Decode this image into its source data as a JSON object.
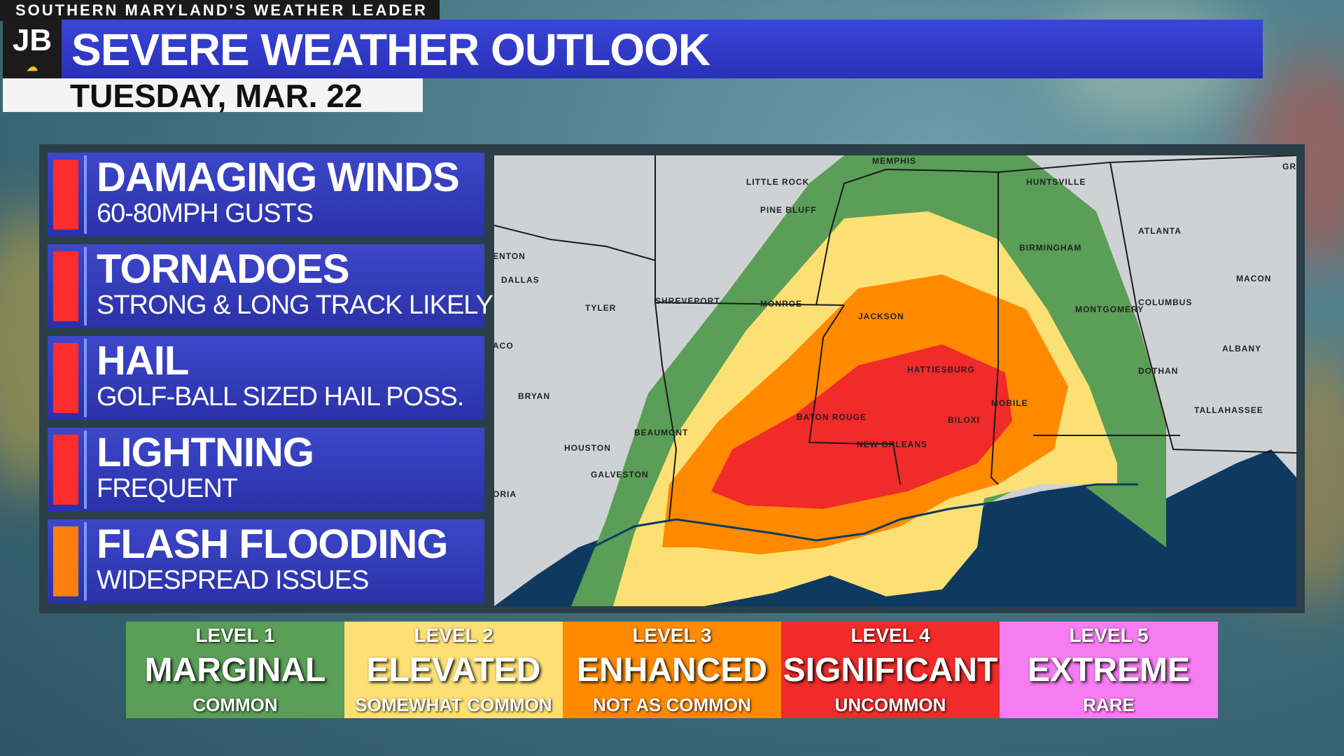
{
  "header": {
    "tagline": "SOUTHERN MARYLAND'S WEATHER LEADER",
    "logo": "JB",
    "title": "SEVERE WEATHER OUTLOOK",
    "date": "TUESDAY, MAR. 22"
  },
  "hazards": [
    {
      "title": "DAMAGING WINDS",
      "sub": "60-80MPH GUSTS",
      "color": "#ff2d2d"
    },
    {
      "title": "TORNADOES",
      "sub": "STRONG & LONG TRACK LIKELY",
      "color": "#ff2d2d"
    },
    {
      "title": "HAIL",
      "sub": "GOLF-BALL SIZED HAIL POSS.",
      "color": "#ff2d2d"
    },
    {
      "title": "LIGHTNING",
      "sub": "FREQUENT",
      "color": "#ff2d2d"
    },
    {
      "title": "FLASH FLOODING",
      "sub": "WIDESPREAD ISSUES",
      "color": "#ff7f0e"
    }
  ],
  "map": {
    "cities": [
      "MEMPHIS",
      "LITTLE ROCK",
      "PINE BLUFF",
      "HUNTSVILLE",
      "GR",
      "ENTON",
      "DALLAS",
      "BIRMINGHAM",
      "ATLANTA",
      "MACON",
      "TYLER",
      "SHREVEPORT",
      "MONROE",
      "JACKSON",
      "MONTGOMERY",
      "COLUMBUS",
      "ACO",
      "ALBANY",
      "HATTIESBURG",
      "DOTHAN",
      "BRYAN",
      "MOBILE",
      "TALLAHASSEE",
      "BATON ROUGE",
      "BILOXI",
      "BEAUMONT",
      "NEW ORLEANS",
      "HOUSTON",
      "GALVESTON",
      "ORIA"
    ],
    "colors": {
      "marginal": "#5a9e57",
      "elevated": "#fde074",
      "enhanced": "#ff8a00",
      "significant": "#f12a2a",
      "water": "#0e3a5f",
      "land": "#cfd2d4"
    }
  },
  "legend": [
    {
      "level": "LEVEL 1",
      "name": "MARGINAL",
      "desc": "COMMON",
      "color": "#5a9e57"
    },
    {
      "level": "LEVEL 2",
      "name": "ELEVATED",
      "desc": "SOMEWHAT COMMON",
      "color": "#fde074"
    },
    {
      "level": "LEVEL 3",
      "name": "ENHANCED",
      "desc": "NOT AS COMMON",
      "color": "#ff8a00"
    },
    {
      "level": "LEVEL 4",
      "name": "SIGNIFICANT",
      "desc": "UNCOMMON",
      "color": "#f12a2a"
    },
    {
      "level": "LEVEL 5",
      "name": "EXTREME",
      "desc": "RARE",
      "color": "#f67cf2"
    }
  ]
}
